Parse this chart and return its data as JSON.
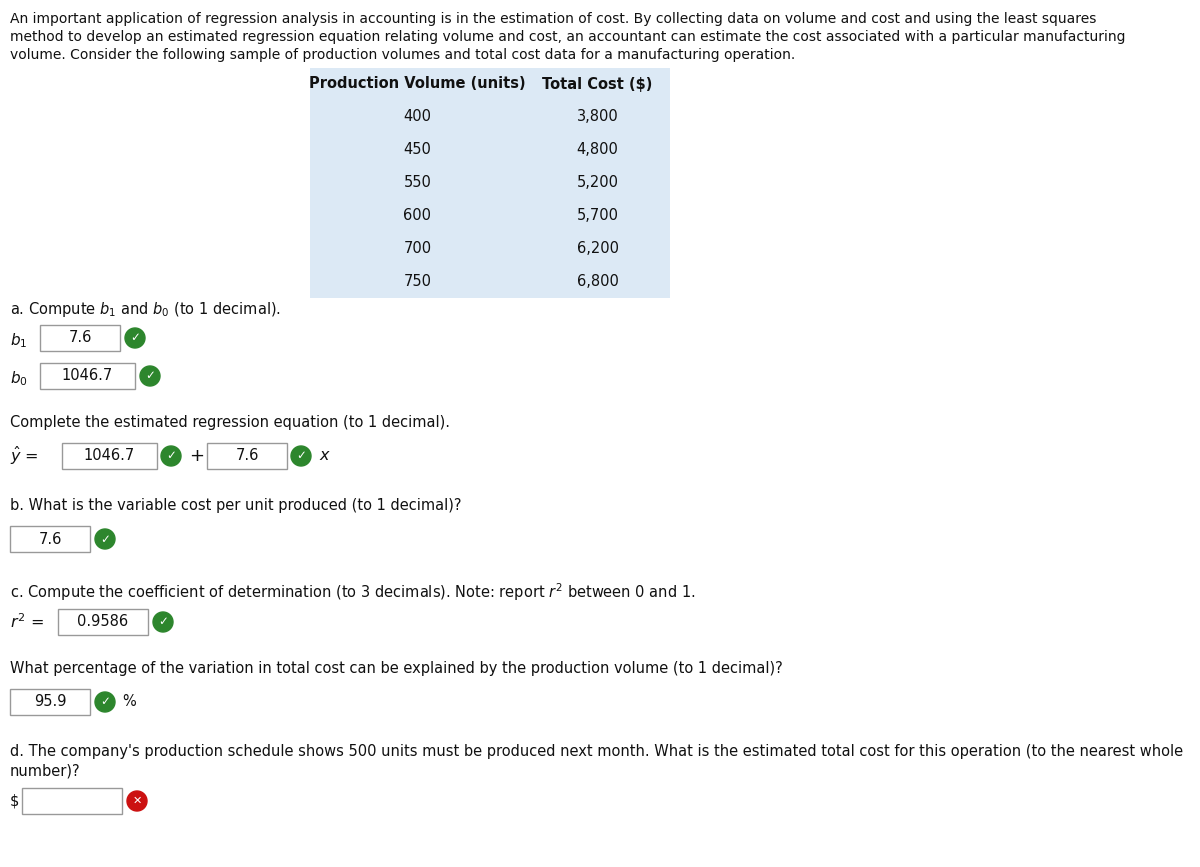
{
  "intro_lines": [
    "An important application of regression analysis in accounting is in the estimation of cost. By collecting data on volume and cost and using the least squares",
    "method to develop an estimated regression equation relating volume and cost, an accountant can estimate the cost associated with a particular manufacturing",
    "volume. Consider the following sample of production volumes and total cost data for a manufacturing operation."
  ],
  "table_header_col1": "Production Volume (units)",
  "table_header_col2": "Total Cost ($)",
  "table_data": [
    [
      "400",
      "3,800"
    ],
    [
      "450",
      "4,800"
    ],
    [
      "550",
      "5,200"
    ],
    [
      "600",
      "5,700"
    ],
    [
      "700",
      "6,200"
    ],
    [
      "750",
      "6,800"
    ]
  ],
  "table_bg": "#dce9f5",
  "section_a_text": "a. Compute $b_1$ and $b_0$ (to 1 decimal).",
  "b1_label": "$b_1$",
  "b1_value": "7.6",
  "b0_label": "$b_0$",
  "b0_value": "1046.7",
  "eq_label": "Complete the estimated regression equation (to 1 decimal).",
  "eq_b0": "1046.7",
  "eq_b1": "7.6",
  "section_b_text": "b. What is the variable cost per unit produced (to 1 decimal)?",
  "b_value": "7.6",
  "section_c_text": "c. Compute the coefficient of determination (to 3 decimals). Note: report $r^2$ between 0 and 1.",
  "r2_value": "0.9586",
  "pct_label": "What percentage of the variation in total cost can be explained by the production volume (to 1 decimal)?",
  "pct_value": "95.9",
  "section_d_text1": "d. The company's production schedule shows 500 units must be produced next month. What is the estimated total cost for this operation (to the nearest whole",
  "section_d_text2": "number)?",
  "input_border": "#999999",
  "check_green": "#2d862d",
  "x_red": "#cc1111",
  "text_black": "#111111",
  "bg_white": "#ffffff"
}
